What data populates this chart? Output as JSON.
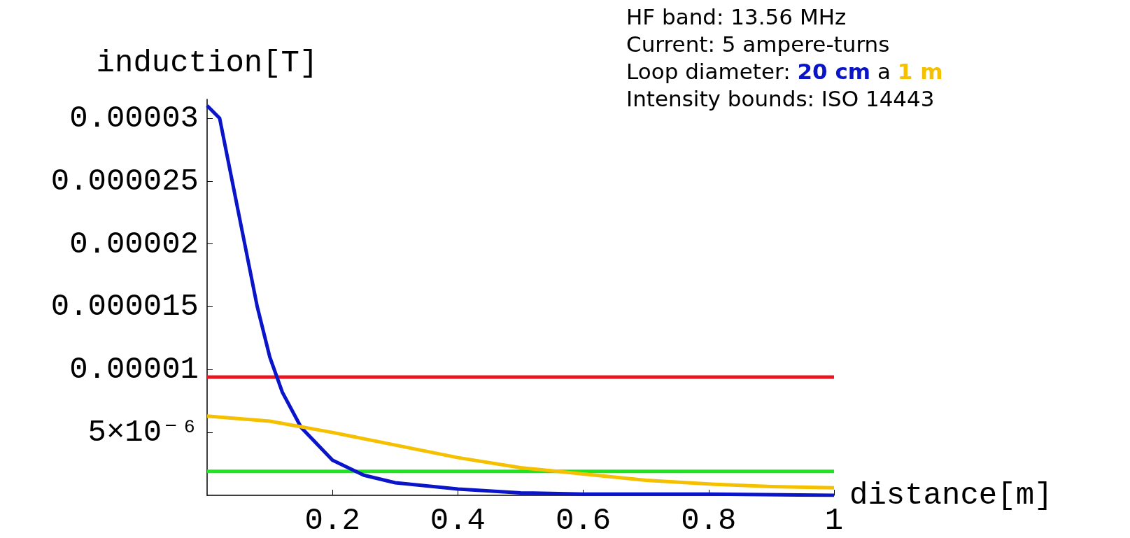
{
  "chart_data": {
    "type": "line",
    "xlabel": "distance[m]",
    "ylabel": "induction[T]",
    "legend_title": "Loop diameter:",
    "annotations": [
      "HF band: 13.56 MHz",
      "Current: 5 ampere-turns",
      "a",
      "Intensity bounds: ISO 14443"
    ],
    "series": [
      {
        "name": "20 cm",
        "color": "#0a14c8",
        "x": [
          0,
          0.02,
          0.04,
          0.06,
          0.08,
          0.1,
          0.12,
          0.15,
          0.2,
          0.25,
          0.3,
          0.4,
          0.5,
          0.6,
          0.8,
          1.0
        ],
        "values": [
          3.1e-05,
          3e-05,
          2.5e-05,
          2e-05,
          1.5e-05,
          1.1e-05,
          8.2e-06,
          5.4e-06,
          2.8e-06,
          1.6e-06,
          1e-06,
          5e-07,
          2e-07,
          1e-07,
          1e-07,
          0
        ]
      },
      {
        "name": "1 m",
        "color": "#f5c000",
        "x": [
          0,
          0.1,
          0.2,
          0.3,
          0.4,
          0.5,
          0.6,
          0.7,
          0.8,
          0.9,
          1.0
        ],
        "values": [
          6.3e-06,
          5.9e-06,
          5e-06,
          4e-06,
          3e-06,
          2.2e-06,
          1.7e-06,
          1.2e-06,
          9e-07,
          7e-07,
          6e-07
        ]
      }
    ],
    "ref_lines": [
      {
        "axis": "y",
        "value": 9.4e-06,
        "color": "#e8141e"
      },
      {
        "axis": "y",
        "value": 1.9e-06,
        "color": "#1ee61e"
      }
    ],
    "xlim": [
      0,
      1
    ],
    "xticks": [
      0.2,
      0.4,
      0.6,
      0.8,
      1
    ],
    "ylim": [
      0,
      3.15e-05
    ],
    "yticks": [
      {
        "value": 5e-06,
        "label": "5×10⁻⁶"
      },
      {
        "value": 1e-05,
        "label": "0.00001"
      },
      {
        "value": 1.5e-05,
        "label": "0.000015"
      },
      {
        "value": 2e-05,
        "label": "0.00002"
      },
      {
        "value": 2.5e-05,
        "label": "0.000025"
      },
      {
        "value": 3e-05,
        "label": "0.00003"
      }
    ],
    "grid": false,
    "legend": "top right",
    "marker": "none",
    "line_style": "solid"
  }
}
